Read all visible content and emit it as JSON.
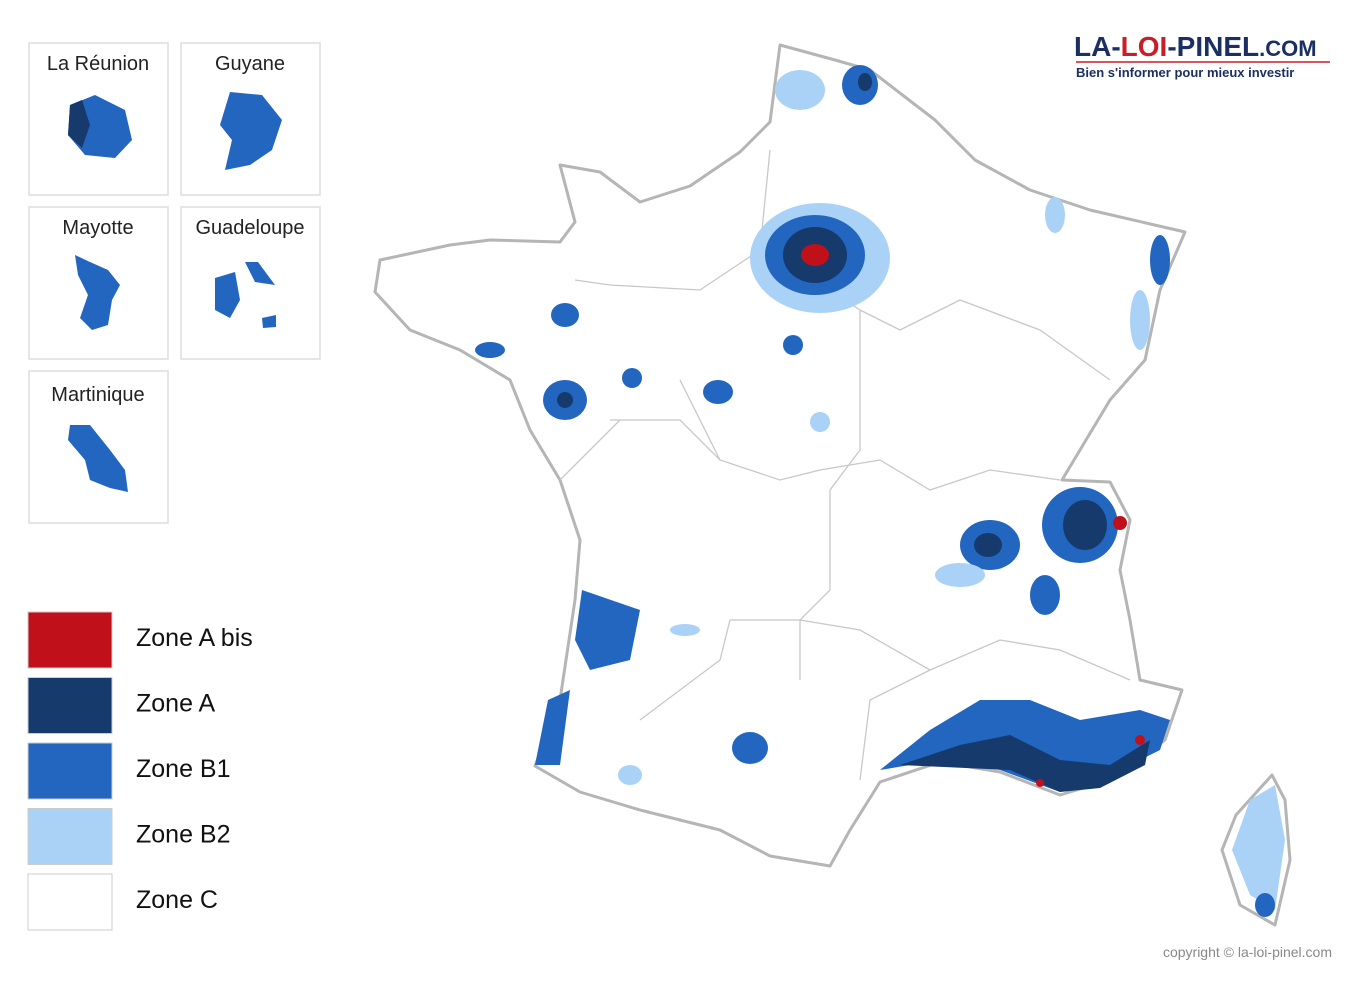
{
  "insets": [
    {
      "label": "La Réunion"
    },
    {
      "label": "Guyane"
    },
    {
      "label": "Mayotte"
    },
    {
      "label": "Guadeloupe"
    },
    {
      "label": "Martinique"
    }
  ],
  "legend": [
    {
      "label": "Zone A bis",
      "color": "#c0101a"
    },
    {
      "label": "Zone A",
      "color": "#153a6b"
    },
    {
      "label": "Zone B1",
      "color": "#2266c0"
    },
    {
      "label": "Zone B2",
      "color": "#aad2f7"
    },
    {
      "label": "Zone C",
      "color": "#ffffff"
    }
  ],
  "logo": {
    "parts": [
      "LA-",
      "LOI",
      "-PINEL",
      ".COM"
    ],
    "tagline": "Bien s'informer pour mieux investir"
  },
  "copyright": "copyright © la-loi-pinel.com"
}
